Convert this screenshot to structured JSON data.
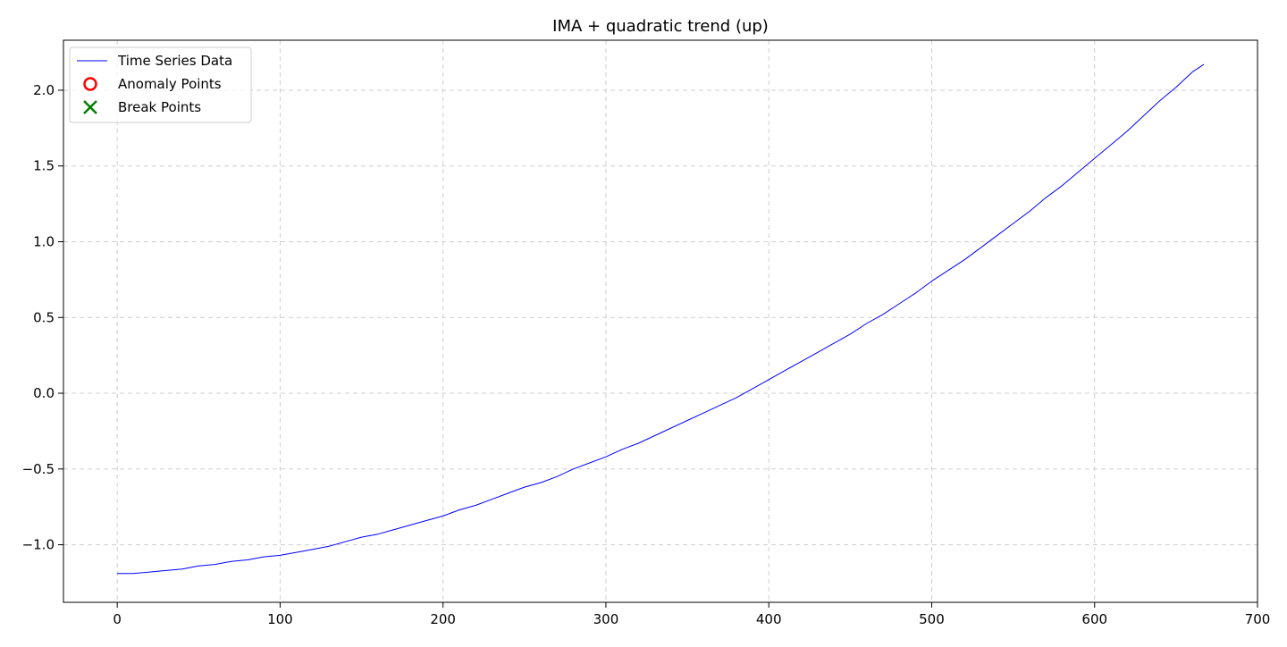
{
  "chart_data": {
    "type": "line",
    "title": "IMA + quadratic trend (up)",
    "xlabel": "",
    "ylabel": "",
    "xlim": [
      -33,
      700
    ],
    "ylim": [
      -1.38,
      2.33
    ],
    "x_ticks": [
      0,
      100,
      200,
      300,
      400,
      500,
      600,
      700
    ],
    "x_tick_labels": [
      "0",
      "100",
      "200",
      "300",
      "400",
      "500",
      "600",
      "700"
    ],
    "y_ticks": [
      -1.0,
      -0.5,
      0.0,
      0.5,
      1.0,
      1.5,
      2.0
    ],
    "y_tick_labels": [
      "−1.0",
      "−0.5",
      "0.0",
      "0.5",
      "1.0",
      "1.5",
      "2.0"
    ],
    "grid": true,
    "legend_position": "top-left",
    "legend": [
      {
        "label": "Time Series Data",
        "marker": "line",
        "color": "#0000ff"
      },
      {
        "label": "Anomaly Points",
        "marker": "circle",
        "color": "#ff0000"
      },
      {
        "label": "Break Points",
        "marker": "x",
        "color": "#008000"
      }
    ],
    "series": [
      {
        "name": "Time Series Data",
        "color": "#0000ff",
        "x": [
          0,
          10,
          20,
          30,
          40,
          50,
          60,
          70,
          80,
          90,
          100,
          110,
          120,
          130,
          140,
          150,
          160,
          170,
          180,
          190,
          200,
          210,
          220,
          230,
          240,
          250,
          260,
          270,
          280,
          290,
          300,
          310,
          320,
          330,
          340,
          350,
          360,
          370,
          380,
          390,
          400,
          410,
          420,
          430,
          440,
          450,
          460,
          470,
          480,
          490,
          500,
          510,
          520,
          530,
          540,
          550,
          560,
          570,
          580,
          590,
          600,
          610,
          620,
          630,
          640,
          650,
          660,
          667
        ],
        "y": [
          -1.19,
          -1.19,
          -1.18,
          -1.17,
          -1.16,
          -1.14,
          -1.13,
          -1.11,
          -1.1,
          -1.08,
          -1.07,
          -1.05,
          -1.03,
          -1.01,
          -0.98,
          -0.95,
          -0.93,
          -0.9,
          -0.87,
          -0.84,
          -0.81,
          -0.77,
          -0.74,
          -0.7,
          -0.66,
          -0.62,
          -0.59,
          -0.55,
          -0.5,
          -0.46,
          -0.42,
          -0.37,
          -0.33,
          -0.28,
          -0.23,
          -0.18,
          -0.13,
          -0.08,
          -0.03,
          0.03,
          0.09,
          0.15,
          0.21,
          0.27,
          0.33,
          0.39,
          0.46,
          0.52,
          0.59,
          0.66,
          0.74,
          0.81,
          0.88,
          0.96,
          1.04,
          1.12,
          1.2,
          1.29,
          1.37,
          1.46,
          1.55,
          1.64,
          1.73,
          1.83,
          1.93,
          2.02,
          2.12,
          2.17
        ]
      }
    ],
    "anomaly_points": [],
    "break_points": []
  }
}
